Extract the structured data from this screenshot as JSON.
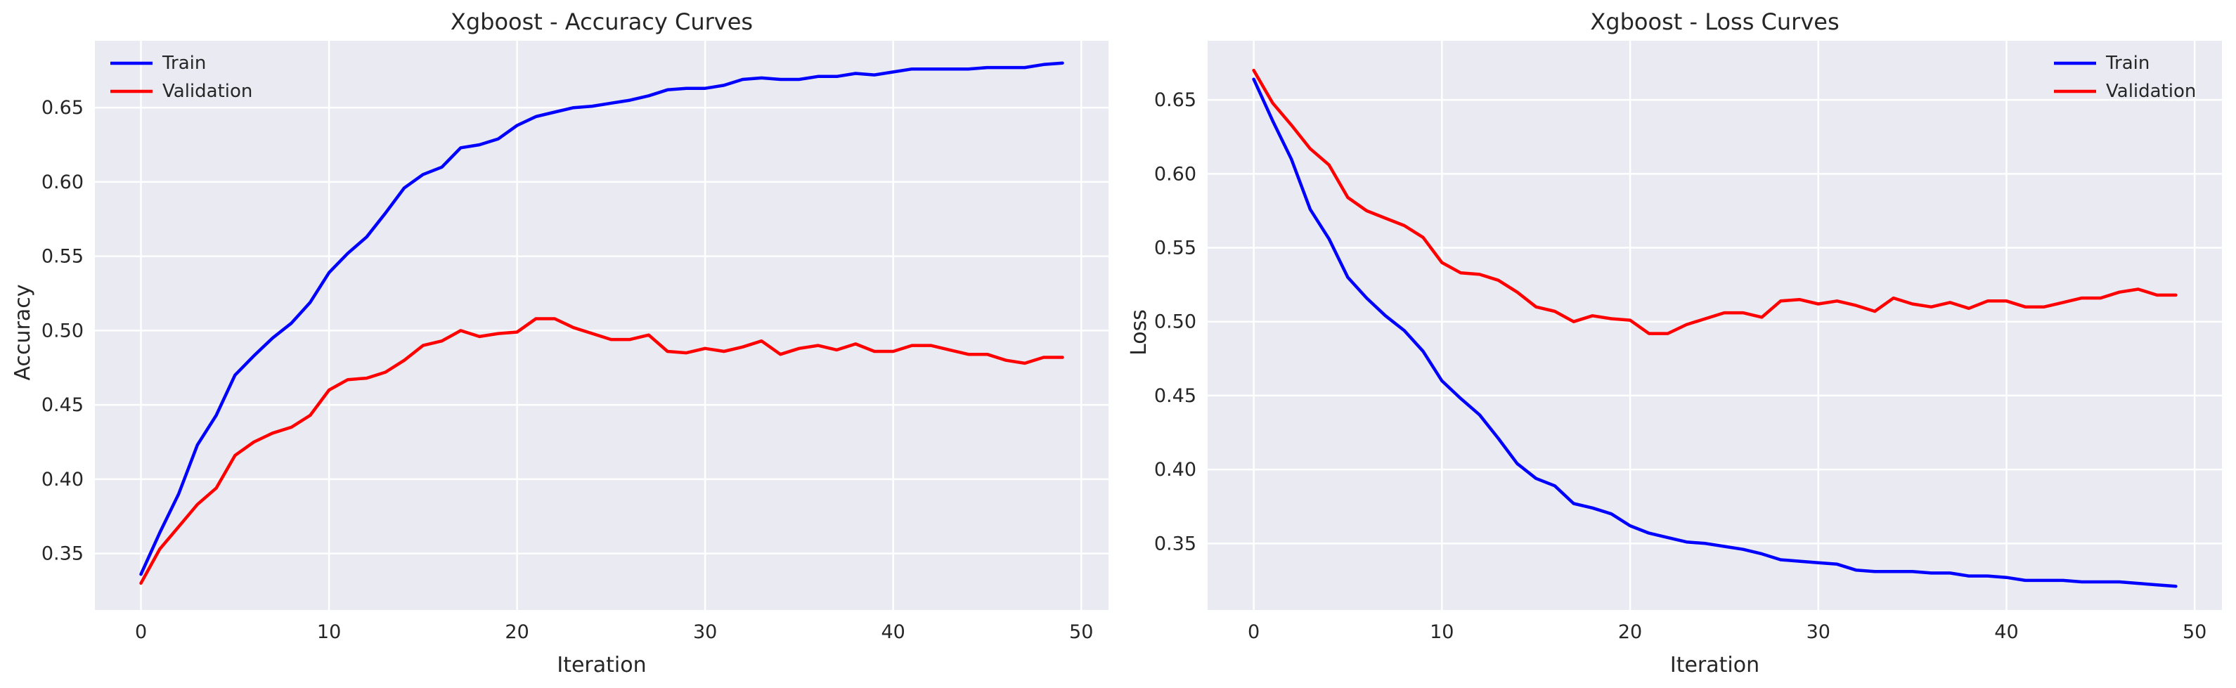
{
  "chart_data": [
    {
      "type": "line",
      "title": "Xgboost - Accuracy Curves",
      "xlabel": "Iteration",
      "ylabel": "Accuracy",
      "xlim": [
        -2.45,
        51.45
      ],
      "ylim": [
        0.312,
        0.695
      ],
      "xticks": [
        0,
        10,
        20,
        30,
        40,
        50
      ],
      "yticks": [
        0.35,
        0.4,
        0.45,
        0.5,
        0.55,
        0.6,
        0.65
      ],
      "ytick_format": 2,
      "grid": true,
      "legend": "upper-left",
      "x": [
        0,
        1,
        2,
        3,
        4,
        5,
        6,
        7,
        8,
        9,
        10,
        11,
        12,
        13,
        14,
        15,
        16,
        17,
        18,
        19,
        20,
        21,
        22,
        23,
        24,
        25,
        26,
        27,
        28,
        29,
        30,
        31,
        32,
        33,
        34,
        35,
        36,
        37,
        38,
        39,
        40,
        41,
        42,
        43,
        44,
        45,
        46,
        47,
        48,
        49
      ],
      "series": [
        {
          "name": "Train",
          "color": "#0000ff",
          "values": [
            0.336,
            0.364,
            0.39,
            0.423,
            0.443,
            0.47,
            0.483,
            0.495,
            0.505,
            0.519,
            0.539,
            0.552,
            0.563,
            0.579,
            0.596,
            0.605,
            0.61,
            0.623,
            0.625,
            0.629,
            0.638,
            0.644,
            0.647,
            0.65,
            0.651,
            0.653,
            0.655,
            0.658,
            0.662,
            0.663,
            0.663,
            0.665,
            0.669,
            0.67,
            0.669,
            0.669,
            0.671,
            0.671,
            0.673,
            0.672,
            0.674,
            0.676,
            0.676,
            0.676,
            0.676,
            0.677,
            0.677,
            0.677,
            0.679,
            0.68
          ]
        },
        {
          "name": "Validation",
          "color": "#ff0000",
          "values": [
            0.33,
            0.353,
            0.368,
            0.383,
            0.394,
            0.416,
            0.425,
            0.431,
            0.435,
            0.443,
            0.46,
            0.467,
            0.468,
            0.472,
            0.48,
            0.49,
            0.493,
            0.5,
            0.496,
            0.498,
            0.499,
            0.508,
            0.508,
            0.502,
            0.498,
            0.494,
            0.494,
            0.497,
            0.486,
            0.485,
            0.488,
            0.486,
            0.489,
            0.493,
            0.484,
            0.488,
            0.49,
            0.487,
            0.491,
            0.486,
            0.486,
            0.49,
            0.49,
            0.487,
            0.484,
            0.484,
            0.48,
            0.478,
            0.482,
            0.482
          ]
        }
      ]
    },
    {
      "type": "line",
      "title": "Xgboost - Loss Curves",
      "xlabel": "Iteration",
      "ylabel": "Loss",
      "xlim": [
        -2.45,
        51.45
      ],
      "ylim": [
        0.305,
        0.69
      ],
      "xticks": [
        0,
        10,
        20,
        30,
        40,
        50
      ],
      "yticks": [
        0.35,
        0.4,
        0.45,
        0.5,
        0.55,
        0.6,
        0.65
      ],
      "ytick_format": 2,
      "grid": true,
      "legend": "upper-right",
      "x": [
        0,
        1,
        2,
        3,
        4,
        5,
        6,
        7,
        8,
        9,
        10,
        11,
        12,
        13,
        14,
        15,
        16,
        17,
        18,
        19,
        20,
        21,
        22,
        23,
        24,
        25,
        26,
        27,
        28,
        29,
        30,
        31,
        32,
        33,
        34,
        35,
        36,
        37,
        38,
        39,
        40,
        41,
        42,
        43,
        44,
        45,
        46,
        47,
        48,
        49
      ],
      "series": [
        {
          "name": "Train",
          "color": "#0000ff",
          "values": [
            0.664,
            0.636,
            0.61,
            0.576,
            0.556,
            0.53,
            0.516,
            0.504,
            0.494,
            0.48,
            0.46,
            0.448,
            0.437,
            0.421,
            0.404,
            0.394,
            0.389,
            0.377,
            0.374,
            0.37,
            0.362,
            0.357,
            0.354,
            0.351,
            0.35,
            0.348,
            0.346,
            0.343,
            0.339,
            0.338,
            0.337,
            0.336,
            0.332,
            0.331,
            0.331,
            0.331,
            0.33,
            0.33,
            0.328,
            0.328,
            0.327,
            0.325,
            0.325,
            0.325,
            0.324,
            0.324,
            0.324,
            0.323,
            0.322,
            0.321
          ]
        },
        {
          "name": "Validation",
          "color": "#ff0000",
          "values": [
            0.67,
            0.648,
            0.633,
            0.617,
            0.606,
            0.584,
            0.575,
            0.57,
            0.565,
            0.557,
            0.54,
            0.533,
            0.532,
            0.528,
            0.52,
            0.51,
            0.507,
            0.5,
            0.504,
            0.502,
            0.501,
            0.492,
            0.492,
            0.498,
            0.502,
            0.506,
            0.506,
            0.503,
            0.514,
            0.515,
            0.512,
            0.514,
            0.511,
            0.507,
            0.516,
            0.512,
            0.51,
            0.513,
            0.509,
            0.514,
            0.514,
            0.51,
            0.51,
            0.513,
            0.516,
            0.516,
            0.52,
            0.522,
            0.518,
            0.518
          ]
        }
      ]
    }
  ]
}
